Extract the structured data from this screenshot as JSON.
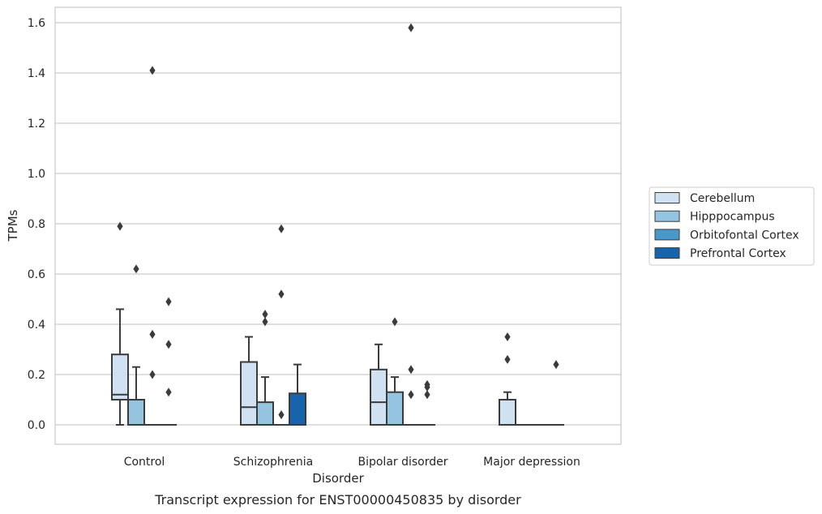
{
  "chart_data": {
    "type": "box",
    "xlabel": "Disorder",
    "ylabel": "TPMs",
    "caption": "Transcript expression for ENST00000450835 by disorder",
    "categories": [
      "Control",
      "Schizophrenia",
      "Bipolar disorder",
      "Major depression"
    ],
    "ylim": [
      -0.075,
      1.66
    ],
    "yticks": [
      0.0,
      0.2,
      0.4,
      0.6,
      0.8,
      1.0,
      1.2,
      1.4,
      1.6
    ],
    "ytick_labels": [
      "0.0",
      "0.2",
      "0.4",
      "0.6",
      "0.8",
      "1.0",
      "1.2",
      "1.4",
      "1.6"
    ],
    "grid": "horizontal",
    "legend_position": "right",
    "series": [
      {
        "name": "Cerebellum",
        "color": "#d0e1f2",
        "boxes": [
          {
            "category": "Control",
            "q1": 0.1,
            "median": 0.12,
            "q3": 0.28,
            "whisker_low": 0.0,
            "whisker_high": 0.46,
            "outliers": [
              0.79
            ]
          },
          {
            "category": "Schizophrenia",
            "q1": 0.0,
            "median": 0.07,
            "q3": 0.25,
            "whisker_low": 0.0,
            "whisker_high": 0.35,
            "outliers": []
          },
          {
            "category": "Bipolar disorder",
            "q1": 0.0,
            "median": 0.09,
            "q3": 0.22,
            "whisker_low": 0.0,
            "whisker_high": 0.32,
            "outliers": []
          },
          {
            "category": "Major depression",
            "q1": 0.0,
            "median": 0.0,
            "q3": 0.1,
            "whisker_low": 0.0,
            "whisker_high": 0.13,
            "outliers": [
              0.26,
              0.35
            ]
          }
        ]
      },
      {
        "name": "Hipppocampus",
        "color": "#94c4df",
        "boxes": [
          {
            "category": "Control",
            "q1": 0.0,
            "median": 0.0,
            "q3": 0.1,
            "whisker_low": 0.0,
            "whisker_high": 0.23,
            "outliers": [
              0.62
            ]
          },
          {
            "category": "Schizophrenia",
            "q1": 0.0,
            "median": 0.0,
            "q3": 0.09,
            "whisker_low": 0.0,
            "whisker_high": 0.19,
            "outliers": [
              0.41,
              0.44
            ]
          },
          {
            "category": "Bipolar disorder",
            "q1": 0.0,
            "median": 0.0,
            "q3": 0.13,
            "whisker_low": 0.0,
            "whisker_high": 0.19,
            "outliers": [
              0.41
            ]
          },
          {
            "category": "Major depression",
            "q1": 0.0,
            "median": 0.0,
            "q3": 0.0,
            "whisker_low": 0.0,
            "whisker_high": 0.0,
            "outliers": []
          }
        ]
      },
      {
        "name": "Orbitofontal Cortex",
        "color": "#4a98c9",
        "boxes": [
          {
            "category": "Control",
            "q1": 0.0,
            "median": 0.0,
            "q3": 0.0,
            "whisker_low": 0.0,
            "whisker_high": 0.0,
            "outliers": [
              0.2,
              0.36,
              1.41
            ]
          },
          {
            "category": "Schizophrenia",
            "q1": 0.0,
            "median": 0.0,
            "q3": 0.0,
            "whisker_low": 0.0,
            "whisker_high": 0.0,
            "outliers": [
              0.04,
              0.52,
              0.78
            ]
          },
          {
            "category": "Bipolar disorder",
            "q1": 0.0,
            "median": 0.0,
            "q3": 0.0,
            "whisker_low": 0.0,
            "whisker_high": 0.0,
            "outliers": [
              0.12,
              0.22,
              1.58
            ]
          },
          {
            "category": "Major depression",
            "q1": 0.0,
            "median": 0.0,
            "q3": 0.0,
            "whisker_low": 0.0,
            "whisker_high": 0.0,
            "outliers": []
          }
        ]
      },
      {
        "name": "Prefrontal Cortex",
        "color": "#1764ab",
        "boxes": [
          {
            "category": "Control",
            "q1": 0.0,
            "median": 0.0,
            "q3": 0.0,
            "whisker_low": 0.0,
            "whisker_high": 0.0,
            "outliers": [
              0.13,
              0.32,
              0.49
            ]
          },
          {
            "category": "Schizophrenia",
            "q1": 0.0,
            "median": 0.0,
            "q3": 0.125,
            "whisker_low": 0.0,
            "whisker_high": 0.24,
            "outliers": []
          },
          {
            "category": "Bipolar disorder",
            "q1": 0.0,
            "median": 0.0,
            "q3": 0.0,
            "whisker_low": 0.0,
            "whisker_high": 0.0,
            "outliers": [
              0.12,
              0.15,
              0.16
            ]
          },
          {
            "category": "Major depression",
            "q1": 0.0,
            "median": 0.0,
            "q3": 0.0,
            "whisker_low": 0.0,
            "whisker_high": 0.0,
            "outliers": [
              0.24
            ]
          }
        ]
      }
    ]
  }
}
